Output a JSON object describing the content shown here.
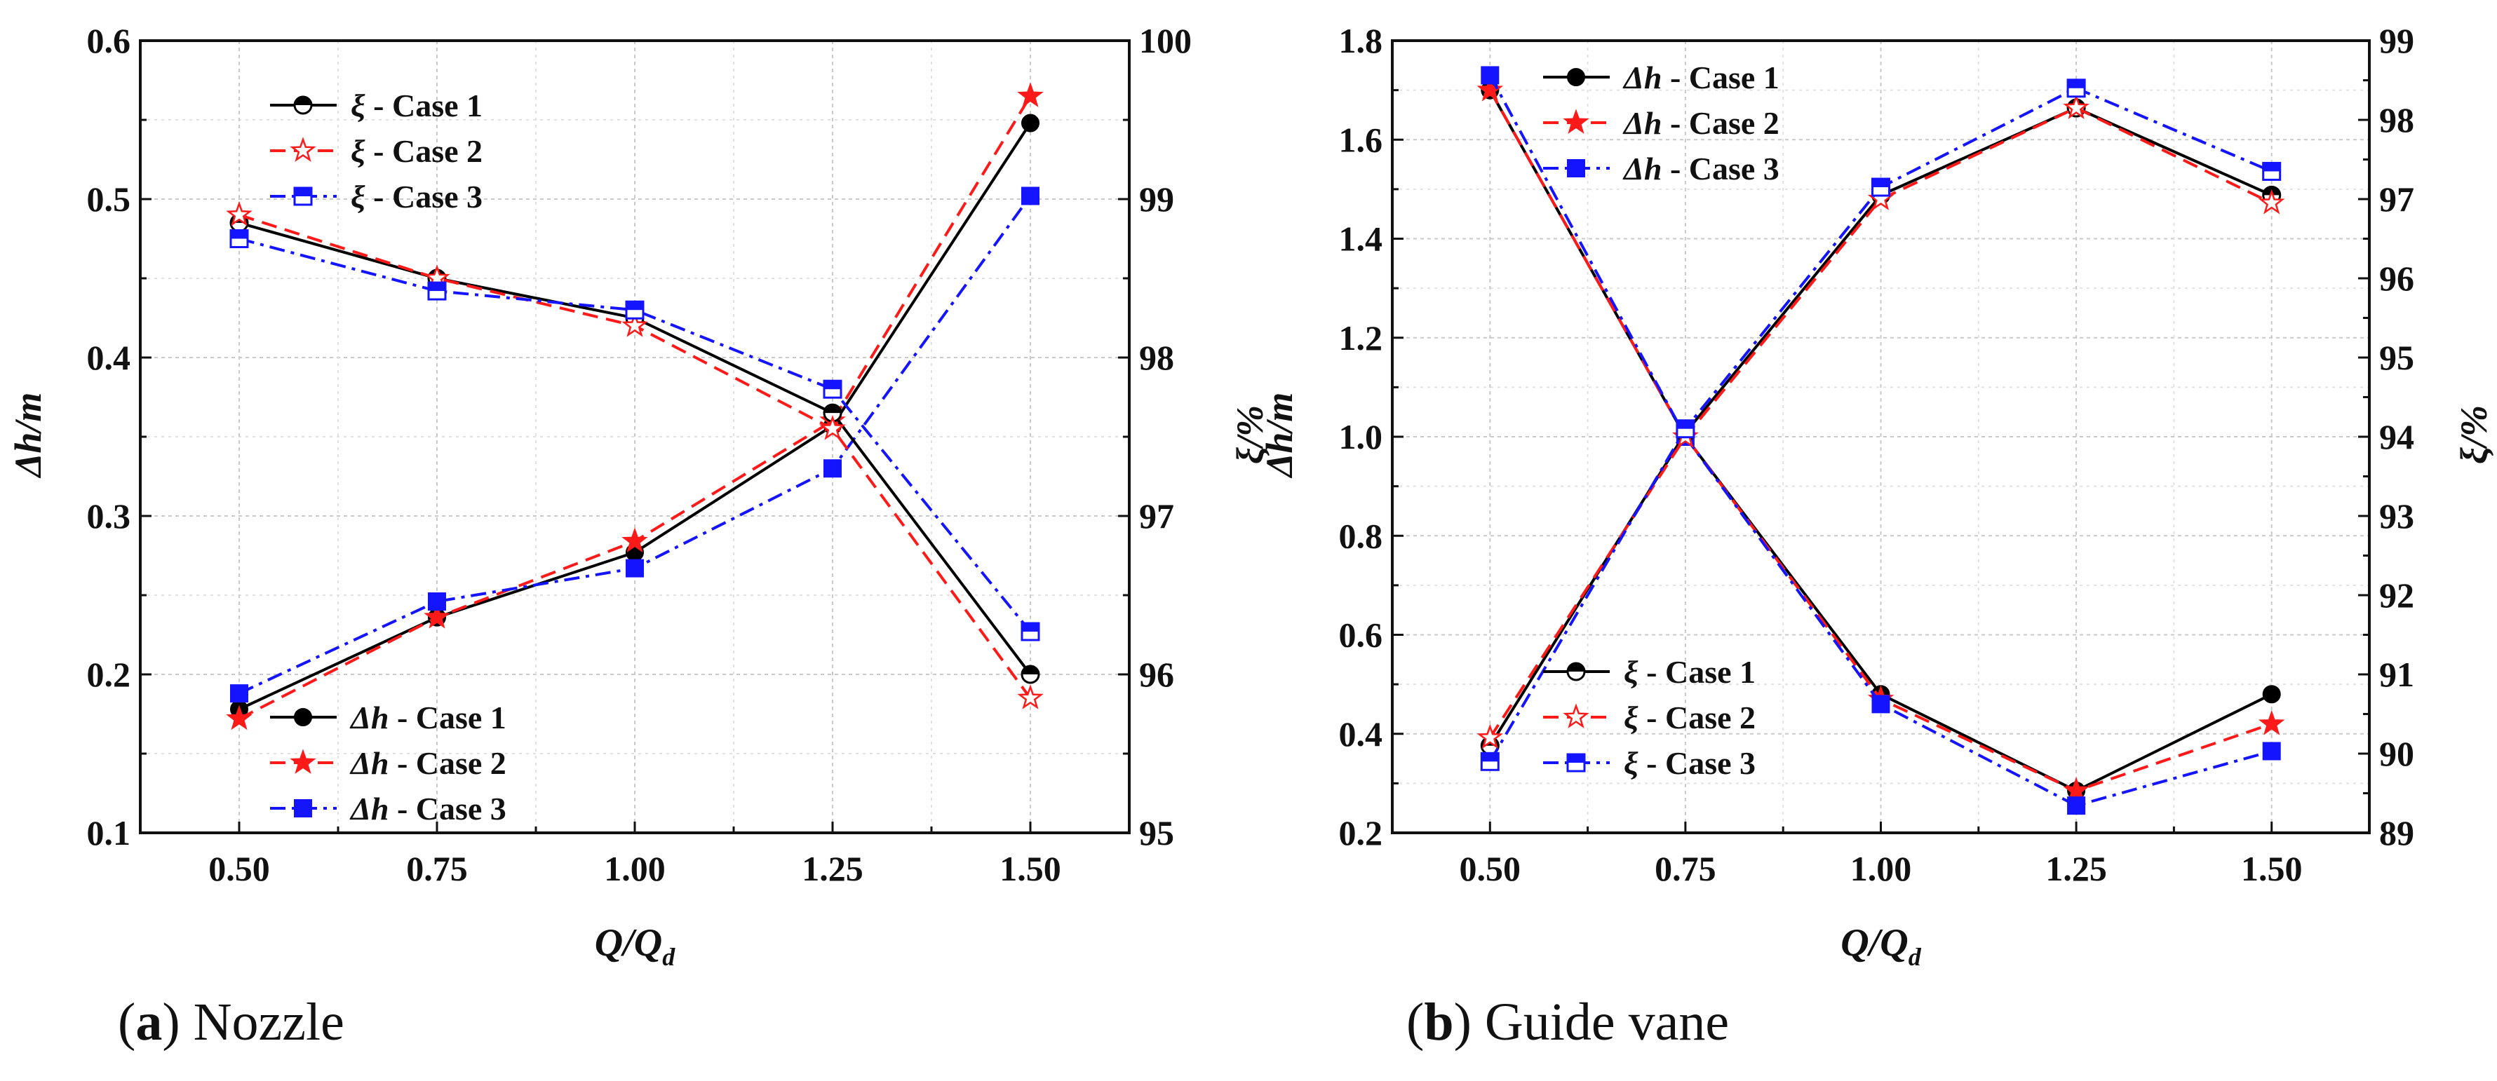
{
  "chart_data": [
    {
      "id": "a",
      "type": "line",
      "caption": {
        "letter": "a",
        "text": "Nozzle"
      },
      "x": [
        0.5,
        0.75,
        1.0,
        1.25,
        1.5
      ],
      "x_ticks": [
        "0.50",
        "0.75",
        "1.00",
        "1.25",
        "1.50"
      ],
      "xlabel": "Q/Qd",
      "xlim": [
        0.375,
        1.625
      ],
      "left_axis": {
        "label": "Δh/m",
        "ylim": [
          0.1,
          0.6
        ],
        "ticks": [
          "0.1",
          "0.2",
          "0.3",
          "0.4",
          "0.5",
          "0.6"
        ]
      },
      "right_axis": {
        "label": "ξ/%",
        "ylim": [
          95,
          100
        ],
        "ticks": [
          "95",
          "96",
          "97",
          "98",
          "99",
          "100"
        ]
      },
      "series": [
        {
          "name": "Δh - Case 1",
          "axis": "left",
          "color": "#000000",
          "dash": "solid",
          "marker": "circle",
          "filled": true,
          "values": [
            0.178,
            0.236,
            0.277,
            0.357,
            0.548
          ]
        },
        {
          "name": "Δh - Case 2",
          "axis": "left",
          "color": "#ff1a1a",
          "dash": "dash",
          "marker": "star",
          "filled": true,
          "values": [
            0.172,
            0.236,
            0.284,
            0.36,
            0.565
          ]
        },
        {
          "name": "Δh - Case 3",
          "axis": "left",
          "color": "#1414ff",
          "dash": "dashdot",
          "marker": "square",
          "filled": true,
          "values": [
            0.188,
            0.246,
            0.267,
            0.33,
            0.502
          ]
        },
        {
          "name": "ξ - Case 1",
          "axis": "right",
          "color": "#000000",
          "dash": "solid",
          "marker": "circle",
          "filled": false,
          "values": [
            98.85,
            98.5,
            98.25,
            97.65,
            96.0
          ]
        },
        {
          "name": "ξ - Case 2",
          "axis": "right",
          "color": "#ff1a1a",
          "dash": "dash",
          "marker": "star",
          "filled": false,
          "values": [
            98.9,
            98.5,
            98.2,
            97.55,
            95.85
          ]
        },
        {
          "name": "ξ - Case 3",
          "axis": "right",
          "color": "#1414ff",
          "dash": "dashdot",
          "marker": "square",
          "filled": false,
          "values": [
            98.75,
            98.42,
            98.3,
            97.8,
            96.27
          ]
        }
      ],
      "legends": [
        {
          "position": "top-left",
          "series": [
            3,
            4,
            5
          ]
        },
        {
          "position": "bottom-left",
          "series": [
            0,
            1,
            2
          ]
        }
      ]
    },
    {
      "id": "b",
      "type": "line",
      "caption": {
        "letter": "b",
        "text": "Guide vane"
      },
      "x": [
        0.5,
        0.75,
        1.0,
        1.25,
        1.5
      ],
      "x_ticks": [
        "0.50",
        "0.75",
        "1.00",
        "1.25",
        "1.50"
      ],
      "xlabel": "Q/Qd",
      "xlim": [
        0.375,
        1.625
      ],
      "left_axis": {
        "label": "Δh/m",
        "ylim": [
          0.2,
          1.8
        ],
        "ticks": [
          "0.2",
          "0.4",
          "0.6",
          "0.8",
          "1.0",
          "1.2",
          "1.4",
          "1.6",
          "1.8"
        ]
      },
      "right_axis": {
        "label": "ξ/%",
        "ylim": [
          89,
          99
        ],
        "ticks": [
          "89",
          "90",
          "91",
          "92",
          "93",
          "94",
          "95",
          "96",
          "97",
          "98",
          "99"
        ]
      },
      "series": [
        {
          "name": "Δh - Case 1",
          "axis": "left",
          "color": "#000000",
          "dash": "solid",
          "marker": "circle",
          "filled": true,
          "values": [
            1.7,
            1.0,
            0.48,
            0.285,
            0.48
          ]
        },
        {
          "name": "Δh - Case 2",
          "axis": "left",
          "color": "#ff1a1a",
          "dash": "dash",
          "marker": "star",
          "filled": true,
          "values": [
            1.7,
            1.0,
            0.47,
            0.285,
            0.42
          ]
        },
        {
          "name": "Δh - Case 3",
          "axis": "left",
          "color": "#1414ff",
          "dash": "dashdot",
          "marker": "square",
          "filled": true,
          "values": [
            1.73,
            1.0,
            0.46,
            0.255,
            0.365
          ]
        },
        {
          "name": "ξ - Case 1",
          "axis": "right",
          "color": "#000000",
          "dash": "solid",
          "marker": "circle",
          "filled": false,
          "values": [
            90.1,
            94.05,
            97.05,
            98.15,
            97.05
          ]
        },
        {
          "name": "ξ - Case 2",
          "axis": "right",
          "color": "#ff1a1a",
          "dash": "dash",
          "marker": "star",
          "filled": false,
          "values": [
            90.2,
            94.0,
            97.0,
            98.15,
            96.95
          ]
        },
        {
          "name": "ξ - Case 3",
          "axis": "right",
          "color": "#1414ff",
          "dash": "dashdot",
          "marker": "square",
          "filled": false,
          "values": [
            89.9,
            94.1,
            97.15,
            98.4,
            97.35
          ]
        }
      ],
      "legends": [
        {
          "position": "top-left",
          "series": [
            0,
            1,
            2
          ]
        },
        {
          "position": "bottom-left",
          "series": [
            3,
            4,
            5
          ]
        }
      ]
    }
  ]
}
